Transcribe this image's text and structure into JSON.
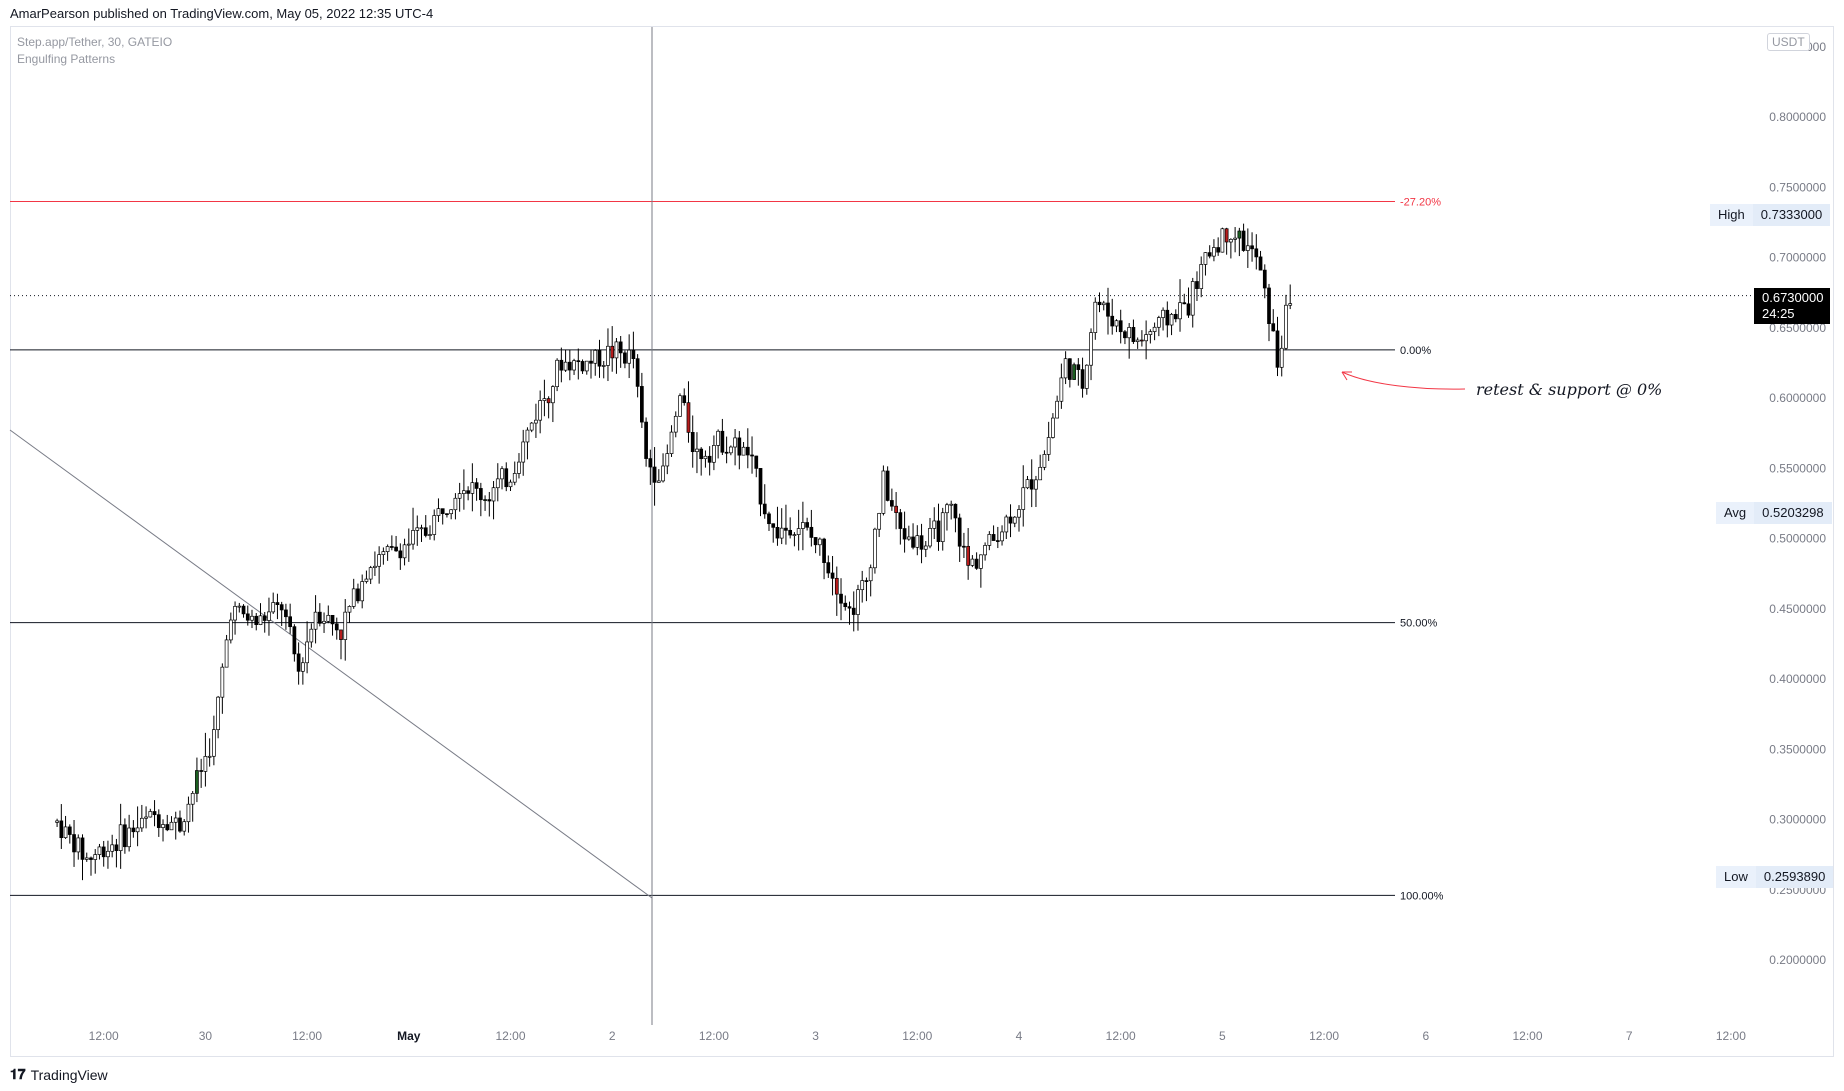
{
  "header": {
    "publish_line": "AmarPearson published on TradingView.com, May 05, 2022 12:35 UTC-4"
  },
  "legend": {
    "symbol": "Step.app/Tether, 30, GATEIO",
    "indicator": "Engulfing Patterns"
  },
  "price_scale": {
    "unit": "USDT",
    "high_label": "High",
    "high_value": "0.7333000",
    "avg_label": "Avg",
    "avg_value": "0.5203298",
    "low_label": "Low",
    "low_value": "0.2593890",
    "current_value": "0.6730000",
    "countdown": "24:25"
  },
  "annotation": {
    "text": "retest & support @ 0%"
  },
  "footer": {
    "brand": "TradingView"
  },
  "colors": {
    "up_candle": "#ffffff",
    "down_candle": "#000000",
    "engulfing_bull": "#1b5e20",
    "engulfing_bear": "#b71c1c",
    "fib_extension": "#f23645",
    "fib_level": "#131722",
    "grid_text": "#131722",
    "axis_text": "#787b86"
  },
  "chart_data": {
    "type": "candlestick",
    "symbol": "Step.app/Tether",
    "interval": "30",
    "exchange": "GATEIO",
    "y_unit": "USDT",
    "ylim": [
      0.14,
      0.87
    ],
    "y_ticks": [
      "0.2000000",
      "0.2500000",
      "0.3000000",
      "0.3500000",
      "0.4000000",
      "0.4500000",
      "0.5000000",
      "0.5500000",
      "0.6000000",
      "0.6500000",
      "0.7000000",
      "0.7500000",
      "0.8000000",
      "0.8500000"
    ],
    "x_ticks": [
      "12:00",
      "30",
      "12:00",
      "May",
      "12:00",
      "2",
      "12:00",
      "3",
      "12:00",
      "4",
      "12:00",
      "5",
      "12:00",
      "6",
      "12:00",
      "7",
      "12:00"
    ],
    "x_tick_time_hours": [
      12,
      24,
      36,
      48,
      60,
      72,
      84,
      96,
      108,
      120,
      132,
      144,
      156,
      168,
      180,
      192,
      204
    ],
    "x_axis_reference": "Apr 29 00:00",
    "fib_levels": [
      {
        "label": "-27.20%",
        "price": 0.74
      },
      {
        "label": "0.00%",
        "price": 0.6344
      },
      {
        "label": "50.00%",
        "price": 0.4402
      },
      {
        "label": "100.00%",
        "price": 0.246
      }
    ],
    "current_price": 0.673,
    "high": 0.7333,
    "avg": 0.5203298,
    "low": 0.259389,
    "anchors": [
      {
        "time_hours": 6.5,
        "price": 0.298
      },
      {
        "time_hours": 10,
        "price": 0.272
      },
      {
        "time_hours": 13,
        "price": 0.283
      },
      {
        "time_hours": 18,
        "price": 0.303
      },
      {
        "time_hours": 21,
        "price": 0.296
      },
      {
        "time_hours": 25,
        "price": 0.36
      },
      {
        "time_hours": 27,
        "price": 0.45
      },
      {
        "time_hours": 30,
        "price": 0.44
      },
      {
        "time_hours": 33,
        "price": 0.452
      },
      {
        "time_hours": 35,
        "price": 0.405
      },
      {
        "time_hours": 37,
        "price": 0.45
      },
      {
        "time_hours": 40,
        "price": 0.435
      },
      {
        "time_hours": 43,
        "price": 0.48
      },
      {
        "time_hours": 46,
        "price": 0.49
      },
      {
        "time_hours": 50,
        "price": 0.505
      },
      {
        "time_hours": 54,
        "price": 0.54
      },
      {
        "time_hours": 57,
        "price": 0.53
      },
      {
        "time_hours": 60,
        "price": 0.545
      },
      {
        "time_hours": 63,
        "price": 0.59
      },
      {
        "time_hours": 66,
        "price": 0.625
      },
      {
        "time_hours": 69,
        "price": 0.625
      },
      {
        "time_hours": 72,
        "price": 0.633
      },
      {
        "time_hours": 74.5,
        "price": 0.628
      },
      {
        "time_hours": 76,
        "price": 0.555
      },
      {
        "time_hours": 78,
        "price": 0.545
      },
      {
        "time_hours": 80,
        "price": 0.6
      },
      {
        "time_hours": 82,
        "price": 0.56
      },
      {
        "time_hours": 85,
        "price": 0.57
      },
      {
        "time_hours": 88,
        "price": 0.56
      },
      {
        "time_hours": 91,
        "price": 0.505
      },
      {
        "time_hours": 94,
        "price": 0.51
      },
      {
        "time_hours": 97,
        "price": 0.49
      },
      {
        "time_hours": 100,
        "price": 0.448
      },
      {
        "time_hours": 102,
        "price": 0.47
      },
      {
        "time_hours": 104,
        "price": 0.54
      },
      {
        "time_hours": 106,
        "price": 0.505
      },
      {
        "time_hours": 109,
        "price": 0.495
      },
      {
        "time_hours": 112,
        "price": 0.52
      },
      {
        "time_hours": 114,
        "price": 0.48
      },
      {
        "time_hours": 117,
        "price": 0.5
      },
      {
        "time_hours": 120,
        "price": 0.525
      },
      {
        "time_hours": 123,
        "price": 0.56
      },
      {
        "time_hours": 125.5,
        "price": 0.625
      },
      {
        "time_hours": 127.5,
        "price": 0.61
      },
      {
        "time_hours": 129,
        "price": 0.67
      },
      {
        "time_hours": 132,
        "price": 0.65
      },
      {
        "time_hours": 134,
        "price": 0.64
      },
      {
        "time_hours": 136,
        "price": 0.65
      },
      {
        "time_hours": 140,
        "price": 0.668
      },
      {
        "time_hours": 142.5,
        "price": 0.705
      },
      {
        "time_hours": 145,
        "price": 0.72
      },
      {
        "time_hours": 148,
        "price": 0.7
      },
      {
        "time_hours": 149.5,
        "price": 0.66
      },
      {
        "time_hours": 150.5,
        "price": 0.625
      },
      {
        "time_hours": 152,
        "price": 0.673
      }
    ]
  }
}
